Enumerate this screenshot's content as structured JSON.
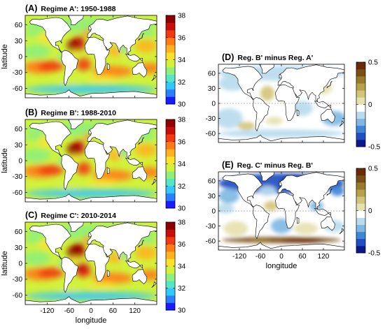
{
  "chart_data": [
    {
      "type": "heatmap",
      "panel": "(A)",
      "title": "Regime A': 1950-1988",
      "ylabel": "latitude",
      "xlabel": "",
      "yticks": [
        "60",
        "30",
        "0",
        "-30",
        "-60"
      ],
      "xticks": [],
      "colorbar": {
        "ticks": [
          "38",
          "36",
          "34",
          "32",
          "30"
        ],
        "min": 30,
        "max": 38
      }
    },
    {
      "type": "heatmap",
      "panel": "(B)",
      "title": "Regime B': 1988-2010",
      "ylabel": "latitude",
      "xlabel": "",
      "yticks": [
        "60",
        "30",
        "0",
        "-30",
        "-60"
      ],
      "xticks": [],
      "colorbar": {
        "ticks": [
          "38",
          "36",
          "34",
          "32",
          "30"
        ],
        "min": 30,
        "max": 38
      }
    },
    {
      "type": "heatmap",
      "panel": "(C)",
      "title": "Regime C': 2010-2014",
      "ylabel": "latitude",
      "xlabel": "longitude",
      "yticks": [
        "60",
        "30",
        "0",
        "-30",
        "-60"
      ],
      "xticks": [
        "-120",
        "-60",
        "0",
        "60",
        "120"
      ],
      "colorbar": {
        "ticks": [
          "38",
          "36",
          "34",
          "32",
          "30"
        ],
        "min": 30,
        "max": 38
      }
    },
    {
      "type": "heatmap",
      "panel": "(D)",
      "title": "Reg. B' minus Reg. A'",
      "ylabel": "",
      "xlabel": "",
      "yticks": [
        "60",
        "30",
        "0",
        "-30",
        "-60"
      ],
      "xticks": [],
      "colorbar": {
        "ticks": [
          "0.5",
          "0",
          "-0.5"
        ],
        "min": -0.5,
        "max": 0.5
      }
    },
    {
      "type": "heatmap",
      "panel": "(E)",
      "title": "Reg. C' minus Reg. B'",
      "ylabel": "",
      "xlabel": "longitude",
      "yticks": [
        "60",
        "30",
        "0",
        "-30",
        "-60"
      ],
      "xticks": [
        "-120",
        "-60",
        "0",
        "60",
        "120"
      ],
      "colorbar": {
        "ticks": [
          "0.5",
          "0",
          "-0.5"
        ],
        "min": -0.5,
        "max": 0.5
      }
    }
  ],
  "colors": {
    "salinity_scale": [
      "#1a1aff",
      "#2a7fff",
      "#33c7ff",
      "#55e6c8",
      "#8ef07a",
      "#d2f23a",
      "#ffe12a",
      "#ffb21e",
      "#ff7a14",
      "#f23a10",
      "#c80e0a",
      "#8e0000"
    ],
    "diff_scale": [
      "#0a1a8c",
      "#1f4fc0",
      "#3f86d6",
      "#7fb8e3",
      "#b9dbee",
      "#ffffff",
      "#e6e2b0",
      "#d2c57a",
      "#b9a14c",
      "#9a7a2c",
      "#7a4f14",
      "#6a2a08"
    ]
  }
}
